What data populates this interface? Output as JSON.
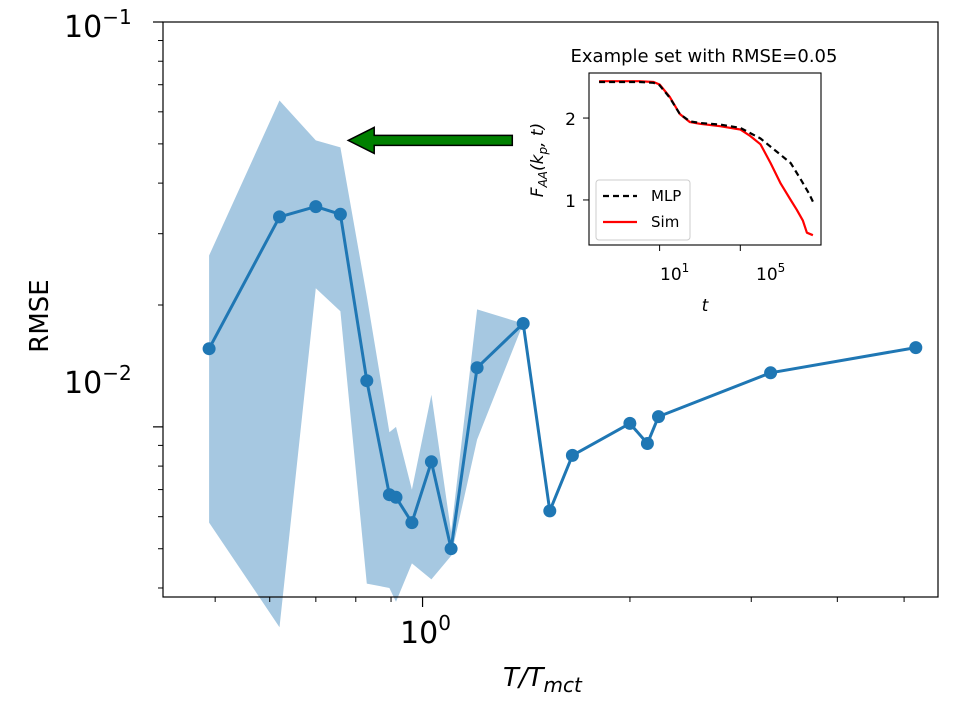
{
  "chart_data": [
    {
      "type": "line",
      "title": "",
      "xlabel": "T/T_mct",
      "xlabel_main": "T/T",
      "xlabel_sub": "mct",
      "ylabel": "RMSE",
      "xscale": "log",
      "yscale": "log",
      "xlim": [
        0.42,
        5.6
      ],
      "ylim": [
        0.0038,
        0.1
      ],
      "xtick_labels": [
        {
          "value": 1.0,
          "base": "10",
          "exp": "0"
        }
      ],
      "ytick_labels": [
        {
          "value": 0.1,
          "base": "10",
          "exp": "−1"
        },
        {
          "value": 0.01,
          "base": "10",
          "exp": "−2"
        }
      ],
      "series": [
        {
          "name": "RMSE",
          "color": "#1f77b4",
          "x": [
            0.49,
            0.62,
            0.7,
            0.76,
            0.83,
            0.895,
            0.915,
            0.965,
            1.03,
            1.1,
            1.2,
            1.4,
            1.53,
            1.65,
            2.0,
            2.12,
            2.2,
            3.2,
            5.2
          ],
          "y": [
            0.0156,
            0.033,
            0.035,
            0.0335,
            0.013,
            0.0068,
            0.0067,
            0.0058,
            0.0082,
            0.005,
            0.014,
            0.018,
            0.0062,
            0.0085,
            0.0102,
            0.0091,
            0.0106,
            0.0136,
            0.0157
          ]
        }
      ],
      "band": {
        "color": "#a6c8e1",
        "x": [
          0.49,
          0.62,
          0.7,
          0.76,
          0.83,
          0.895,
          0.915,
          0.965,
          1.03,
          1.1,
          1.2,
          1.4,
          1.53
        ],
        "upper": [
          0.0265,
          0.064,
          0.051,
          0.049,
          0.021,
          0.0097,
          0.01,
          0.007,
          0.012,
          0.0055,
          0.0195,
          0.018,
          0.0065
        ],
        "lower": [
          0.0058,
          0.0032,
          0.022,
          0.0193,
          0.0041,
          0.004,
          0.0037,
          0.0046,
          0.0042,
          0.0048,
          0.0093,
          0.018,
          0.006
        ]
      },
      "arrow": {
        "color": "#008000",
        "direction": "left",
        "x_from": 1.35,
        "x_to": 0.78,
        "y": 0.051
      }
    },
    {
      "type": "line",
      "title": "Example set with RMSE=0.05",
      "xlabel": "t",
      "ylabel": "F_AA(k_p, t)",
      "ylabel_parts": [
        "F",
        "AA",
        "(k",
        "p",
        ", t)"
      ],
      "xscale": "log",
      "xlim": [
        -2.5,
        9.0
      ],
      "ylim": [
        0.45,
        2.55
      ],
      "xtick_labels": [
        {
          "value": 1,
          "base": "10",
          "exp": "1"
        },
        {
          "value": 5,
          "base": "10",
          "exp": "5"
        }
      ],
      "ytick_labels": [
        {
          "value": 1,
          "label": "1"
        },
        {
          "value": 2,
          "label": "2"
        }
      ],
      "legend": {
        "placement": "lower-left",
        "entries": [
          "MLP",
          "Sim"
        ]
      },
      "series": [
        {
          "name": "MLP",
          "style": "dashed",
          "color": "#000000",
          "log10_t": [
            -2.0,
            0.0,
            0.7,
            1.0,
            1.5,
            2.0,
            2.5,
            3.0,
            4.0,
            5.0,
            6.0,
            7.0,
            7.5,
            8.0,
            8.4,
            8.6
          ],
          "values": [
            2.44,
            2.44,
            2.43,
            2.4,
            2.25,
            2.05,
            1.96,
            1.94,
            1.92,
            1.88,
            1.75,
            1.55,
            1.45,
            1.25,
            1.08,
            0.98
          ]
        },
        {
          "name": "Sim",
          "style": "solid",
          "color": "#ff0000",
          "log10_t": [
            -2.0,
            0.0,
            0.7,
            1.0,
            1.5,
            2.0,
            2.5,
            3.0,
            4.0,
            5.0,
            5.5,
            6.0,
            6.5,
            7.0,
            7.5,
            7.8,
            8.1,
            8.3,
            8.6
          ],
          "values": [
            2.45,
            2.45,
            2.44,
            2.41,
            2.26,
            2.05,
            1.95,
            1.93,
            1.9,
            1.86,
            1.78,
            1.68,
            1.45,
            1.2,
            1.0,
            0.88,
            0.75,
            0.6,
            0.57
          ]
        }
      ]
    }
  ]
}
